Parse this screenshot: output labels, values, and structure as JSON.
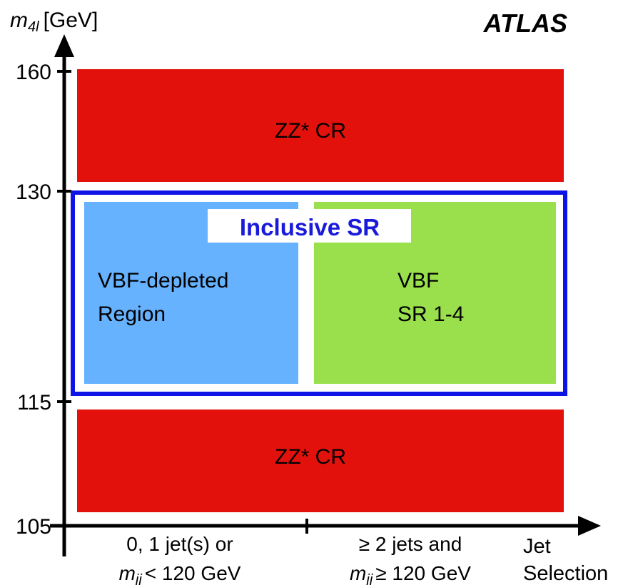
{
  "y_axis": {
    "label": {
      "symbol": "m",
      "subscript": "4l",
      "unit": "[GeV]"
    },
    "ticks": [
      "160",
      "130",
      "115",
      "105"
    ]
  },
  "brand": "ATLAS",
  "regions": {
    "top_control": "ZZ* CR",
    "inclusive": "Inclusive SR",
    "vbf_depleted": [
      "VBF-depleted",
      "Region"
    ],
    "vbf": [
      "VBF",
      "SR 1-4"
    ],
    "bottom_control": "ZZ* CR"
  },
  "x_axis": {
    "left": {
      "line1": "0, 1 jet(s) or",
      "symbol": "m",
      "subscript": "jj",
      "rest": "< 120 GeV"
    },
    "right": {
      "line1": "≥ 2 jets and",
      "symbol": "m",
      "subscript": "jj",
      "rest": "≥ 120 GeV"
    },
    "label": [
      "Jet",
      "Selection"
    ]
  }
}
